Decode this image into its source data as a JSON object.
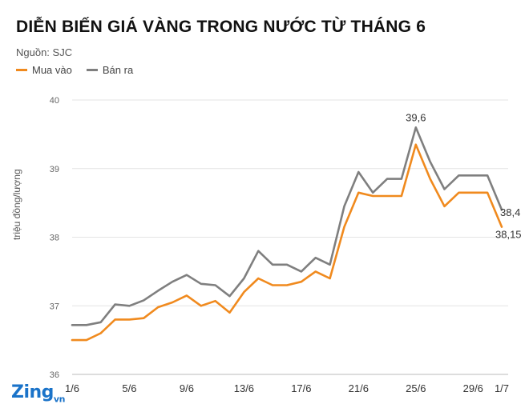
{
  "title": "DIỄN BIẾN GIÁ VÀNG TRONG NƯỚC TỪ THÁNG 6",
  "source": "Nguồn: SJC",
  "logo": {
    "main": "Zing",
    "suffix": "vn"
  },
  "colors": {
    "mua_vao": "#f08a1e",
    "ban_ra": "#7f7f7f",
    "grid": "#e3e3e3",
    "axis": "#bbbbbb"
  },
  "chart_data": {
    "type": "line",
    "ylabel": "triệu đồng/lượng",
    "ylim": [
      36,
      40
    ],
    "yticks": [
      36,
      37,
      38,
      39,
      40
    ],
    "grid": true,
    "legend_position": "top-left",
    "x": [
      "1/6",
      "2/6",
      "3/6",
      "4/6",
      "5/6",
      "6/6",
      "7/6",
      "8/6",
      "9/6",
      "10/6",
      "11/6",
      "12/6",
      "13/6",
      "14/6",
      "15/6",
      "16/6",
      "17/6",
      "18/6",
      "19/6",
      "20/6",
      "21/6",
      "22/6",
      "23/6",
      "24/6",
      "25/6",
      "26/6",
      "27/6",
      "28/6",
      "29/6",
      "30/6",
      "1/7"
    ],
    "xtick_labels": [
      "1/6",
      "5/6",
      "9/6",
      "13/6",
      "17/6",
      "21/6",
      "25/6",
      "29/6",
      "1/7"
    ],
    "series": [
      {
        "name": "Mua vào",
        "values": [
          36.5,
          36.5,
          36.6,
          36.8,
          36.8,
          36.82,
          36.98,
          37.05,
          37.15,
          37.0,
          37.07,
          36.9,
          37.2,
          37.4,
          37.3,
          37.3,
          37.35,
          37.5,
          37.4,
          38.15,
          38.65,
          38.6,
          38.6,
          38.6,
          39.35,
          38.85,
          38.45,
          38.65,
          38.65,
          38.65,
          38.15
        ]
      },
      {
        "name": "Bán ra",
        "values": [
          36.72,
          36.72,
          36.76,
          37.02,
          37.0,
          37.08,
          37.22,
          37.35,
          37.45,
          37.32,
          37.3,
          37.14,
          37.4,
          37.8,
          37.6,
          37.6,
          37.5,
          37.7,
          37.6,
          38.45,
          38.95,
          38.65,
          38.85,
          38.85,
          39.6,
          39.1,
          38.7,
          38.9,
          38.9,
          38.9,
          38.4
        ]
      }
    ],
    "annotations": [
      {
        "x": "25/6",
        "text": "39,6"
      },
      {
        "x": "1/7",
        "text": "38,4"
      },
      {
        "x": "1/7",
        "text": "38,15"
      }
    ]
  }
}
